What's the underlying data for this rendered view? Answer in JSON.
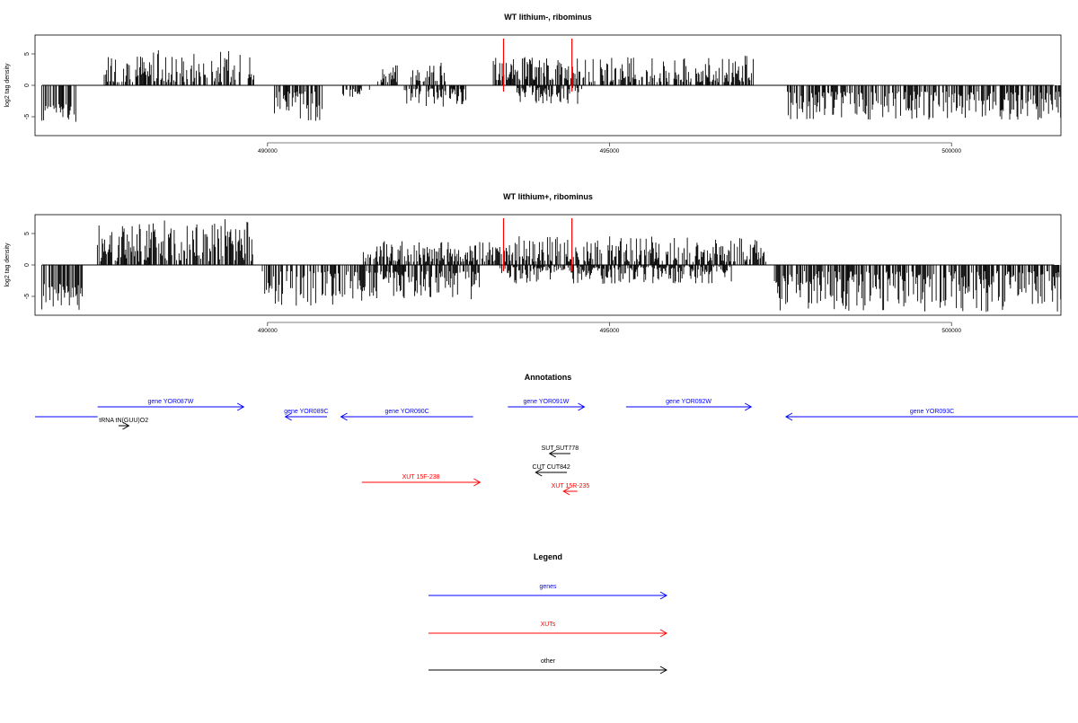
{
  "chart_data": [
    {
      "type": "bar",
      "title": "WT lithium-, ribominus",
      "ylabel": "log2 tag density",
      "xlabel": "",
      "xlim": [
        486600,
        501600
      ],
      "ylim": [
        -8,
        8
      ],
      "x_ticks": [
        490000,
        495000,
        500000
      ],
      "y_ticks": [
        -5,
        0,
        5
      ],
      "y_tick_labels": [
        "-5",
        "0",
        "5"
      ],
      "markers": [
        493450,
        494450
      ],
      "marker_color": "#ff0000",
      "segments": [
        {
          "start": 486700,
          "end": 487200,
          "strand": "-",
          "min": 3,
          "max": 6
        },
        {
          "start": 487600,
          "end": 489800,
          "strand": "+",
          "min": 0.5,
          "max": 5.7
        },
        {
          "start": 490100,
          "end": 490800,
          "strand": "-",
          "min": 1,
          "max": 5.8
        },
        {
          "start": 491100,
          "end": 491500,
          "strand": "-",
          "min": 0.5,
          "max": 2
        },
        {
          "start": 491600,
          "end": 491900,
          "strand": "+",
          "min": 0.5,
          "max": 3.5
        },
        {
          "start": 492000,
          "end": 492900,
          "strand": "-",
          "min": 0.5,
          "max": 3.5
        },
        {
          "start": 492100,
          "end": 492600,
          "strand": "+",
          "min": 0.5,
          "max": 3.8
        },
        {
          "start": 493300,
          "end": 494700,
          "strand": "+",
          "min": 0.8,
          "max": 4.5
        },
        {
          "start": 493600,
          "end": 494600,
          "strand": "-",
          "min": 0.3,
          "max": 3
        },
        {
          "start": 494700,
          "end": 497100,
          "strand": "+",
          "min": 0.5,
          "max": 4.7
        },
        {
          "start": 497600,
          "end": 501600,
          "strand": "-",
          "min": 1,
          "max": 5.5
        }
      ],
      "seed": 17
    },
    {
      "type": "bar",
      "title": "WT lithium+, ribominus",
      "ylabel": "log2 tag density",
      "xlabel": "",
      "xlim": [
        486600,
        501600
      ],
      "ylim": [
        -8,
        8
      ],
      "x_ticks": [
        490000,
        495000,
        500000
      ],
      "y_ticks": [
        -5,
        0,
        5
      ],
      "y_tick_labels": [
        "-5",
        "0",
        "5"
      ],
      "markers": [
        493450,
        494450
      ],
      "marker_color": "#ff0000",
      "segments": [
        {
          "start": 486700,
          "end": 487300,
          "strand": "-",
          "min": 3,
          "max": 7.2
        },
        {
          "start": 487500,
          "end": 489800,
          "strand": "+",
          "min": 0.5,
          "max": 7.3
        },
        {
          "start": 489900,
          "end": 491500,
          "strand": "-",
          "min": 1,
          "max": 6.5
        },
        {
          "start": 491400,
          "end": 493300,
          "strand": "+",
          "min": 0.5,
          "max": 3.8
        },
        {
          "start": 491500,
          "end": 493100,
          "strand": "-",
          "min": 1,
          "max": 5.5
        },
        {
          "start": 493300,
          "end": 497300,
          "strand": "+",
          "min": 0.5,
          "max": 4.6
        },
        {
          "start": 493400,
          "end": 496800,
          "strand": "-",
          "min": 0.3,
          "max": 3
        },
        {
          "start": 497400,
          "end": 501600,
          "strand": "-",
          "min": 1,
          "max": 7.5
        }
      ],
      "seed": 41
    }
  ],
  "annotations": {
    "title": "Annotations",
    "xlim": [
      486600,
      501600
    ],
    "features": [
      {
        "label": "",
        "start": 486600,
        "end": 487500,
        "strand": "+",
        "row": 1,
        "color": "#0000ff",
        "arrow": false
      },
      {
        "label": "gene YOR087W",
        "start": 487500,
        "end": 489600,
        "strand": "+",
        "row": 0,
        "color": "#0000ff",
        "arrow": true
      },
      {
        "label": "tRNA tN(GUU)O2",
        "start": 487800,
        "end": 487950,
        "strand": "+",
        "row": 2,
        "color": "#000000",
        "arrow": true
      },
      {
        "label": "gene YOR089C",
        "start": 490200,
        "end": 490800,
        "strand": "-",
        "row": 1,
        "color": "#0000ff",
        "arrow": true
      },
      {
        "label": "gene YOR090C",
        "start": 491000,
        "end": 492900,
        "strand": "-",
        "row": 1,
        "color": "#0000ff",
        "arrow": true
      },
      {
        "label": "gene YOR091W",
        "start": 493400,
        "end": 494500,
        "strand": "+",
        "row": 0,
        "color": "#0000ff",
        "arrow": true
      },
      {
        "label": "gene YOR092W",
        "start": 495100,
        "end": 496900,
        "strand": "+",
        "row": 0,
        "color": "#0000ff",
        "arrow": true
      },
      {
        "label": "gene YOR093C",
        "start": 497400,
        "end": 501600,
        "strand": "-",
        "row": 1,
        "color": "#0000ff",
        "arrow": true
      },
      {
        "label": "SUT SUT778",
        "start": 494000,
        "end": 494300,
        "strand": "-",
        "row": 3,
        "color": "#000000",
        "arrow": true
      },
      {
        "label": "CUT CUT842",
        "start": 493800,
        "end": 494250,
        "strand": "-",
        "row": 4,
        "color": "#000000",
        "arrow": true
      },
      {
        "label": "XUT 15F-238",
        "start": 491300,
        "end": 493000,
        "strand": "+",
        "row": 5,
        "color": "#ff0000",
        "arrow": true
      },
      {
        "label": "XUT 15R-235",
        "start": 494200,
        "end": 494400,
        "strand": "-",
        "row": 6,
        "color": "#ff0000",
        "arrow": true
      }
    ]
  },
  "legend": {
    "title": "Legend",
    "items": [
      {
        "label": "genes",
        "color": "#0000ff"
      },
      {
        "label": "XUTs",
        "color": "#ff0000"
      },
      {
        "label": "other",
        "color": "#000000"
      }
    ]
  }
}
